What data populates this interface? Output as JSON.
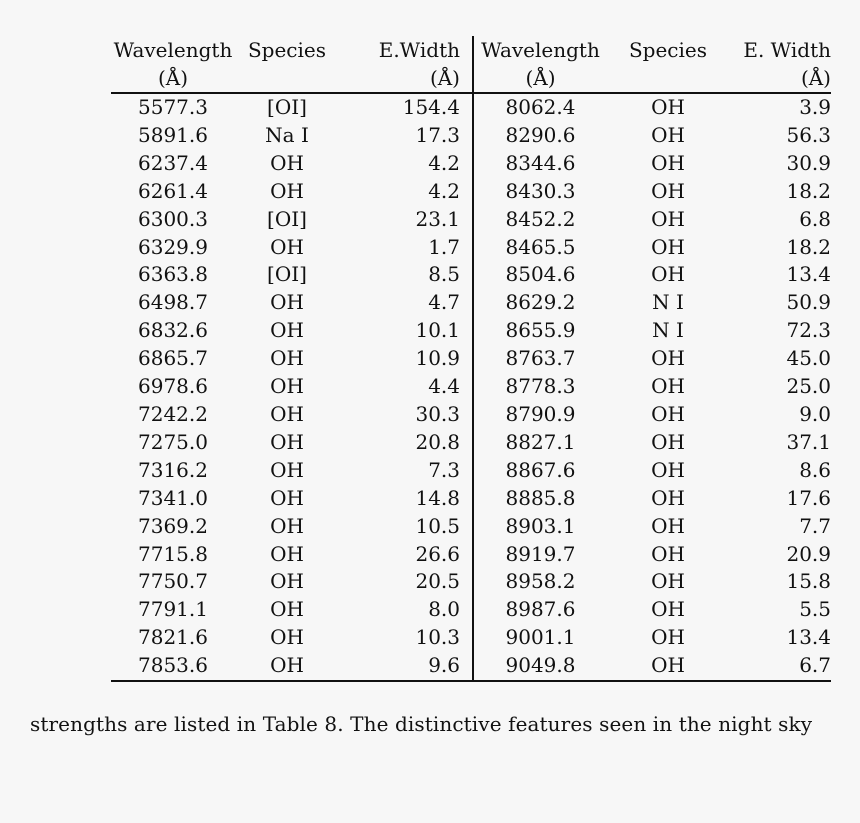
{
  "table": {
    "headers": {
      "left": {
        "wavelength": "Wavelength",
        "wavelength_unit": "(Å)",
        "species": "Species",
        "ewidth": "E.Width",
        "ewidth_unit": "(Å)"
      },
      "right": {
        "wavelength": "Wavelength",
        "wavelength_unit": "(Å)",
        "species": "Species",
        "ewidth": "E. Width",
        "ewidth_unit": "(Å)"
      }
    },
    "rows": [
      {
        "wl1": "5577.3",
        "sp1": "[OI]",
        "ew1": "154.4",
        "wl2": "8062.4",
        "sp2": "OH",
        "ew2": "3.9"
      },
      {
        "wl1": "5891.6",
        "sp1": "Na I",
        "ew1": "17.3",
        "wl2": "8290.6",
        "sp2": "OH",
        "ew2": "56.3"
      },
      {
        "wl1": "6237.4",
        "sp1": "OH",
        "ew1": "4.2",
        "wl2": "8344.6",
        "sp2": "OH",
        "ew2": "30.9"
      },
      {
        "wl1": "6261.4",
        "sp1": "OH",
        "ew1": "4.2",
        "wl2": "8430.3",
        "sp2": "OH",
        "ew2": "18.2"
      },
      {
        "wl1": "6300.3",
        "sp1": "[OI]",
        "ew1": "23.1",
        "wl2": "8452.2",
        "sp2": "OH",
        "ew2": "6.8"
      },
      {
        "wl1": "6329.9",
        "sp1": "OH",
        "ew1": "1.7",
        "wl2": "8465.5",
        "sp2": "OH",
        "ew2": "18.2"
      },
      {
        "wl1": "6363.8",
        "sp1": "[OI]",
        "ew1": "8.5",
        "wl2": "8504.6",
        "sp2": "OH",
        "ew2": "13.4"
      },
      {
        "wl1": "6498.7",
        "sp1": "OH",
        "ew1": "4.7",
        "wl2": "8629.2",
        "sp2": "N I",
        "ew2": "50.9"
      },
      {
        "wl1": "6832.6",
        "sp1": "OH",
        "ew1": "10.1",
        "wl2": "8655.9",
        "sp2": "N I",
        "ew2": "72.3"
      },
      {
        "wl1": "6865.7",
        "sp1": "OH",
        "ew1": "10.9",
        "wl2": "8763.7",
        "sp2": "OH",
        "ew2": "45.0"
      },
      {
        "wl1": "6978.6",
        "sp1": "OH",
        "ew1": "4.4",
        "wl2": "8778.3",
        "sp2": "OH",
        "ew2": "25.0"
      },
      {
        "wl1": "7242.2",
        "sp1": "OH",
        "ew1": "30.3",
        "wl2": "8790.9",
        "sp2": "OH",
        "ew2": "9.0"
      },
      {
        "wl1": "7275.0",
        "sp1": "OH",
        "ew1": "20.8",
        "wl2": "8827.1",
        "sp2": "OH",
        "ew2": "37.1"
      },
      {
        "wl1": "7316.2",
        "sp1": "OH",
        "ew1": "7.3",
        "wl2": "8867.6",
        "sp2": "OH",
        "ew2": "8.6"
      },
      {
        "wl1": "7341.0",
        "sp1": "OH",
        "ew1": "14.8",
        "wl2": "8885.8",
        "sp2": "OH",
        "ew2": "17.6"
      },
      {
        "wl1": "7369.2",
        "sp1": "OH",
        "ew1": "10.5",
        "wl2": "8903.1",
        "sp2": "OH",
        "ew2": "7.7"
      },
      {
        "wl1": "7715.8",
        "sp1": "OH",
        "ew1": "26.6",
        "wl2": "8919.7",
        "sp2": "OH",
        "ew2": "20.9"
      },
      {
        "wl1": "7750.7",
        "sp1": "OH",
        "ew1": "20.5",
        "wl2": "8958.2",
        "sp2": "OH",
        "ew2": "15.8"
      },
      {
        "wl1": "7791.1",
        "sp1": "OH",
        "ew1": "8.0",
        "wl2": "8987.6",
        "sp2": "OH",
        "ew2": "5.5"
      },
      {
        "wl1": "7821.6",
        "sp1": "OH",
        "ew1": "10.3",
        "wl2": "9001.1",
        "sp2": "OH",
        "ew2": "13.4"
      },
      {
        "wl1": "7853.6",
        "sp1": "OH",
        "ew1": "9.6",
        "wl2": "9049.8",
        "sp2": "OH",
        "ew2": "6.7"
      }
    ]
  },
  "body_text": "strengths are listed in Table 8.  The distinctive features seen in the night sky"
}
